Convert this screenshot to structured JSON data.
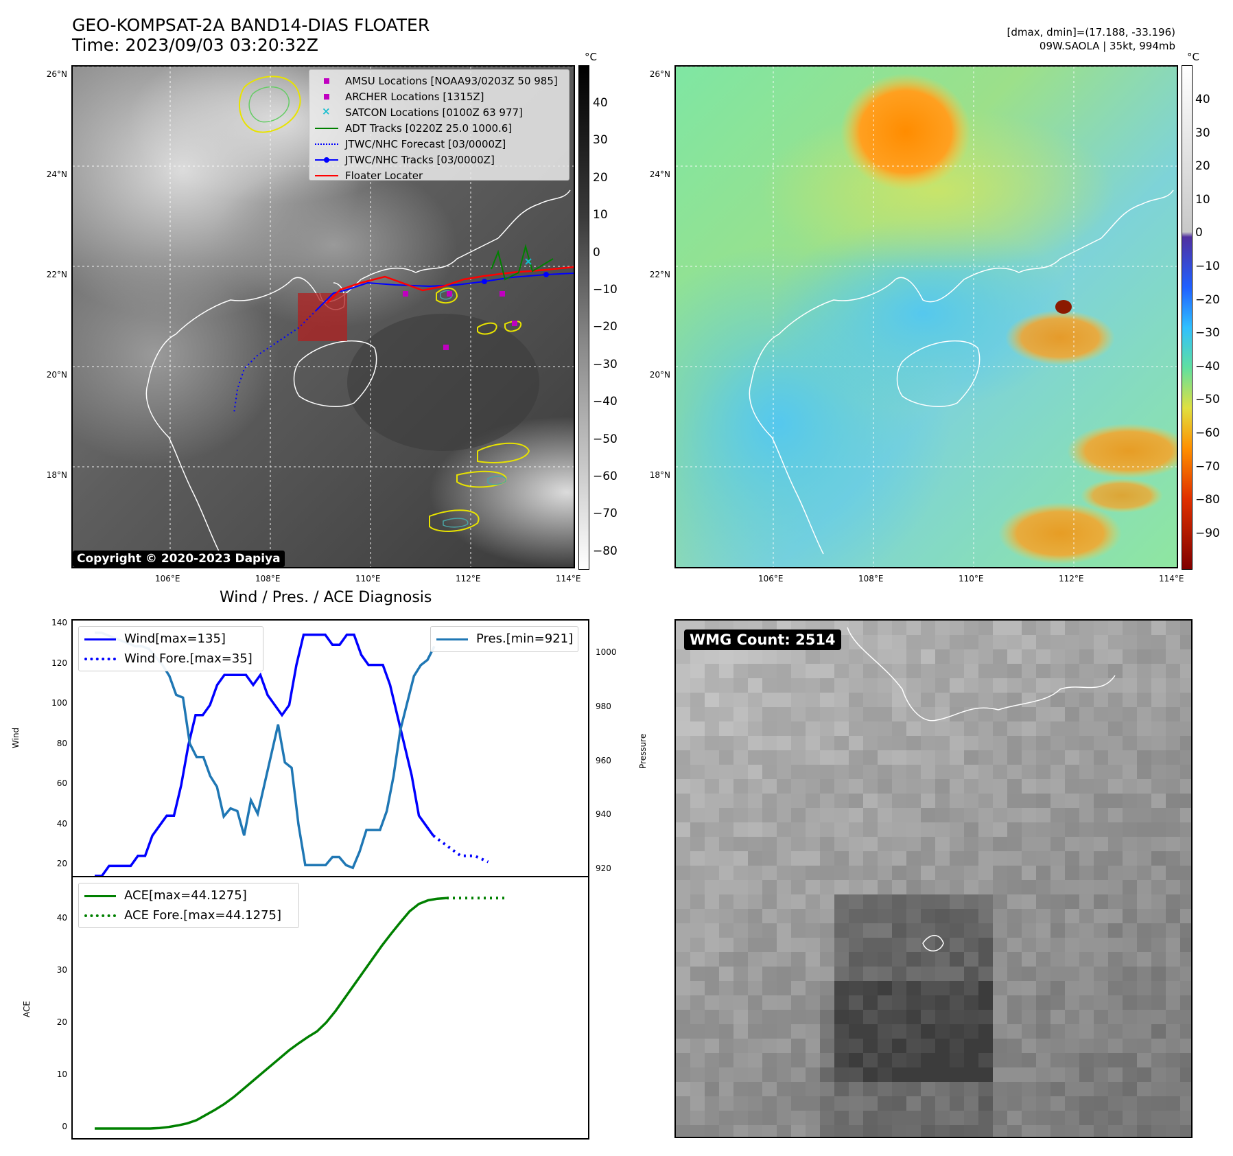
{
  "header": {
    "title": "GEO-KOMPSAT-2A BAND14-DIAS FLOATER",
    "time": "Time: 2023/09/03 03:20:32Z",
    "dmax_dmin": "[dmax, dmin]=(17.188, -33.196)",
    "storm": "09W.SAOLA | 35kt, 994mb"
  },
  "map_ir": {
    "lat_ticks": [
      "26°N",
      "24°N",
      "22°N",
      "20°N",
      "18°N"
    ],
    "lon_ticks": [
      "106°E",
      "108°E",
      "110°E",
      "112°E",
      "114°E"
    ],
    "copyright": "Copyright © 2020-2023 Dapiya",
    "colorbar_unit": "°C",
    "colorbar_ticks": [
      "40",
      "30",
      "20",
      "10",
      "0",
      "−10",
      "−20",
      "−30",
      "−40",
      "−50",
      "−60",
      "−70",
      "−80"
    ],
    "legend": [
      {
        "label": "AMSU Locations [NOAA93/0203Z 50 985]",
        "symbol": "square",
        "color": "#c000c0"
      },
      {
        "label": "ARCHER Locations [1315Z]",
        "symbol": "square",
        "color": "#c000c0"
      },
      {
        "label": "SATCON Locations [0100Z 63 977]",
        "symbol": "x",
        "color": "#17becf"
      },
      {
        "label": "ADT Tracks [0220Z 25.0 1000.6]",
        "symbol": "line",
        "color": "#008000"
      },
      {
        "label": "JTWC/NHC Forecast [03/0000Z]",
        "symbol": "dotted",
        "color": "#0000ff"
      },
      {
        "label": "JTWC/NHC Tracks [03/0000Z]",
        "symbol": "line-dot",
        "color": "#0000ff"
      },
      {
        "label": "Floater Locater",
        "symbol": "line",
        "color": "#ff0000"
      }
    ]
  },
  "map_color": {
    "lat_ticks": [
      "26°N",
      "24°N",
      "22°N",
      "20°N",
      "18°N"
    ],
    "lon_ticks": [
      "106°E",
      "108°E",
      "110°E",
      "112°E",
      "114°E"
    ],
    "colorbar_unit": "°C",
    "colorbar_ticks": [
      "40",
      "30",
      "20",
      "10",
      "0",
      "−10",
      "−20",
      "−30",
      "−40",
      "−50",
      "−60",
      "−70",
      "−80",
      "−90"
    ]
  },
  "wind_panel": {
    "title": "Wind / Pres. / ACE Diagnosis",
    "y_label_left": "Wind",
    "y_label_right": "Pressure",
    "y_ticks_left": [
      "140",
      "120",
      "100",
      "80",
      "60",
      "40",
      "20"
    ],
    "y_ticks_right": [
      "1000",
      "980",
      "960",
      "940",
      "920"
    ],
    "legend_left": [
      {
        "label": "Wind[max=135]",
        "style": "solid",
        "color": "#0000ff"
      },
      {
        "label": "Wind Fore.[max=35]",
        "style": "dotted",
        "color": "#0000ff"
      }
    ],
    "legend_right": [
      {
        "label": "Pres.[min=921]",
        "style": "solid",
        "color": "#1f77b4"
      }
    ]
  },
  "ace_panel": {
    "y_label": "ACE",
    "y_ticks": [
      "40",
      "30",
      "20",
      "10",
      "0"
    ],
    "legend": [
      {
        "label": "ACE[max=44.1275]",
        "style": "solid",
        "color": "#008000"
      },
      {
        "label": "ACE Fore.[max=44.1275]",
        "style": "dotted",
        "color": "#008000"
      }
    ]
  },
  "wmg_panel": {
    "badge": "WMG Count: 2514"
  },
  "chart_data": [
    {
      "type": "line",
      "title": "Wind / Pres. / ACE Diagnosis",
      "ylabel": "Wind",
      "ylim": [
        15,
        140
      ],
      "series": [
        {
          "name": "Wind[max=135]",
          "values": [
            15,
            15,
            20,
            20,
            20,
            20,
            25,
            25,
            35,
            40,
            45,
            45,
            60,
            80,
            95,
            95,
            100,
            110,
            115,
            115,
            115,
            115,
            110,
            115,
            105,
            100,
            95,
            100,
            120,
            135,
            135,
            135,
            135,
            130,
            130,
            135,
            135,
            125,
            120,
            120,
            120,
            110,
            95,
            80,
            65,
            45,
            40,
            35
          ]
        },
        {
          "name": "Wind Fore.[max=35]",
          "values": [
            35,
            30,
            25,
            25,
            22
          ]
        }
      ]
    },
    {
      "type": "line",
      "ylabel": "Pressure",
      "ylim": [
        918,
        1011
      ],
      "series": [
        {
          "name": "Pres.[min=921]",
          "values": [
            1008,
            1008,
            1007,
            1006,
            1005,
            1004,
            1003,
            1003,
            1002,
            999,
            996,
            992,
            985,
            984,
            967,
            962,
            962,
            955,
            951,
            940,
            943,
            942,
            933,
            946,
            941,
            952,
            963,
            974,
            960,
            958,
            937,
            922,
            922,
            922,
            922,
            925,
            925,
            922,
            921,
            927,
            935,
            935,
            935,
            942,
            955,
            972,
            982,
            992,
            996,
            998,
            1003
          ]
        }
      ]
    },
    {
      "type": "line",
      "ylabel": "ACE",
      "ylim": [
        0,
        46
      ],
      "series": [
        {
          "name": "ACE[max=44.1275]",
          "values": [
            0,
            0,
            0,
            0,
            0,
            0,
            0,
            0.1,
            0.3,
            0.6,
            1.0,
            1.6,
            2.6,
            3.6,
            4.7,
            6.0,
            7.5,
            9.0,
            10.5,
            12.0,
            13.5,
            15.0,
            16.3,
            17.5,
            18.6,
            20.3,
            22.5,
            25.0,
            27.5,
            30.0,
            32.5,
            35.0,
            37.3,
            39.5,
            41.6,
            43.0,
            43.7,
            44.0,
            44.1275
          ]
        },
        {
          "name": "ACE Fore.[max=44.1275]",
          "values": [
            44.1275,
            44.1275,
            44.1275,
            44.1275,
            44.1275,
            44.1275
          ]
        }
      ]
    }
  ]
}
